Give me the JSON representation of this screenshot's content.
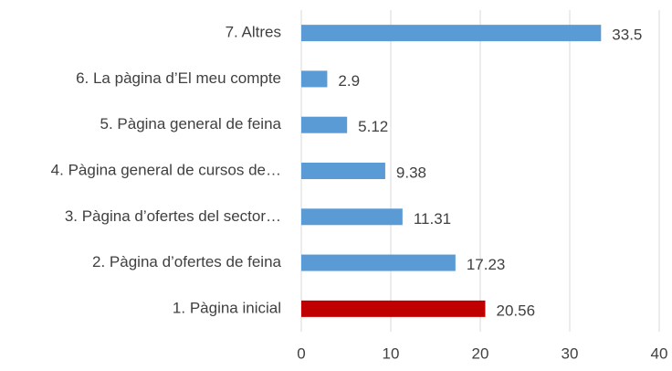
{
  "chart_data": {
    "type": "bar",
    "orientation": "horizontal",
    "categories": [
      "1. Pàgina inicial",
      "2. Pàgina d’ofertes de feina",
      "3. Pàgina d’ofertes del sector…",
      "4. Pàgina general de cursos de…",
      "5. Pàgina general de feina",
      "6. La pàgina d’El meu compte",
      "7. Altres"
    ],
    "values": [
      20.56,
      17.23,
      11.31,
      9.38,
      5.12,
      2.9,
      33.5
    ],
    "colors": [
      "#c00000",
      "#5b9bd5",
      "#5b9bd5",
      "#5b9bd5",
      "#5b9bd5",
      "#5b9bd5",
      "#5b9bd5"
    ],
    "xlim": [
      0,
      40
    ],
    "xticks": [
      0,
      10,
      20,
      30,
      40
    ],
    "grid": true
  }
}
